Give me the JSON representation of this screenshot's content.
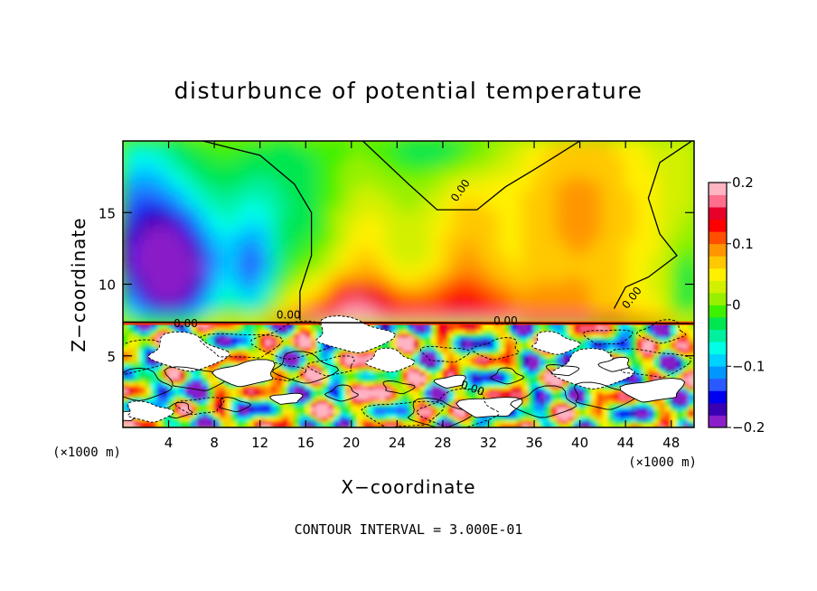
{
  "title": "disturbunce of potential temperature",
  "footer": "CONTOUR INTERVAL = 3.000E-01",
  "chart_data": {
    "type": "heatmap",
    "title": "disturbunce of potential temperature",
    "xlabel": "X−coordinate",
    "ylabel": "Z−coordinate",
    "x_unit_left": "(×1000 m)",
    "x_unit_right": "(×1000 m)",
    "xlim": [
      0,
      50
    ],
    "ylim": [
      0,
      20
    ],
    "x_ticks": [
      4,
      8,
      12,
      16,
      20,
      24,
      28,
      32,
      36,
      40,
      44,
      48
    ],
    "y_ticks": [
      5,
      10,
      15
    ],
    "colorbar": {
      "range": [
        -0.2,
        0.2
      ],
      "ticks": [
        0.2,
        0.1,
        0,
        -0.1,
        -0.2
      ],
      "tick_labels": [
        "0.2",
        "0.1",
        "0",
        "−0.1",
        "−0.2"
      ],
      "colors": [
        "#8a1ec8",
        "#3a00b4",
        "#0000f0",
        "#2a5aff",
        "#0096ff",
        "#00d2ff",
        "#00ffe6",
        "#00f0a0",
        "#00e650",
        "#3cf000",
        "#96f000",
        "#d2f000",
        "#fff000",
        "#ffc800",
        "#ff9600",
        "#ff5000",
        "#ff0000",
        "#e6002a",
        "#ff6e8c",
        "#ffb4c3"
      ]
    },
    "contour_interval": 0.3,
    "contour_labels": [
      "0.00",
      "0.00",
      "0.00",
      "0.00",
      "0.00",
      "0.00"
    ],
    "field_description_regions": [
      {
        "x": [
          0,
          50
        ],
        "z": [
          7.3,
          20
        ],
        "level_range": [
          -0.2,
          0.1
        ]
      },
      {
        "x": [
          0,
          50
        ],
        "z": [
          0,
          7.3
        ],
        "level_range": [
          -0.2,
          0.2
        ]
      }
    ]
  }
}
